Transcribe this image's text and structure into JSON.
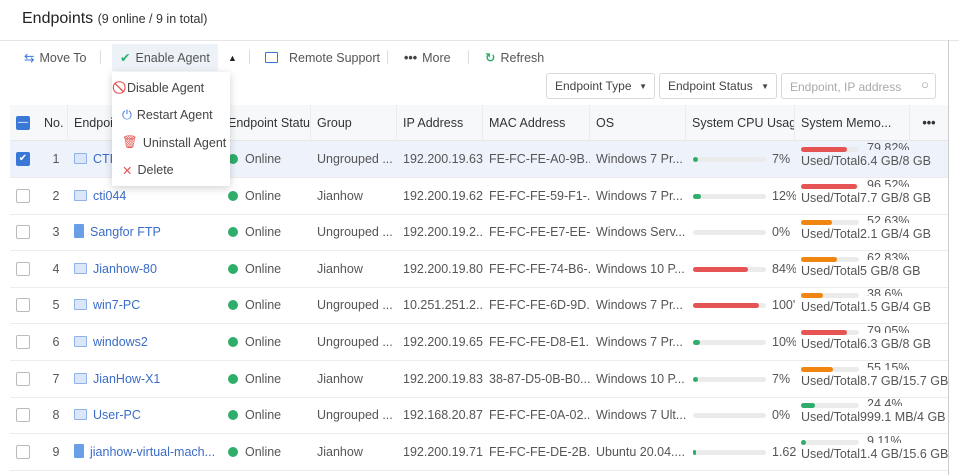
{
  "header": {
    "title": "Endpoints",
    "subtitle": "(9 online / 9 in total)"
  },
  "toolbar": {
    "move_to": "Move To",
    "enable_agent": "Enable Agent",
    "remote_support": "Remote Support",
    "more": "More",
    "refresh": "Refresh"
  },
  "dropdown_menu": {
    "items": [
      {
        "label": "Disable Agent",
        "icon": "ban-icon"
      },
      {
        "label": "Restart Agent",
        "icon": "power-icon"
      },
      {
        "label": "Uninstall Agent",
        "icon": "trash-icon"
      },
      {
        "label": "Delete",
        "icon": "x-icon"
      }
    ]
  },
  "filters": {
    "endpoint_type": "Endpoint Type",
    "endpoint_status": "Endpoint Status",
    "search_placeholder": "Endpoint, IP address"
  },
  "colors": {
    "accent": "#3a78d8",
    "green": "#2eae6a",
    "red": "#e55353",
    "orange": "#f0860f"
  },
  "table": {
    "headers": [
      "No.",
      "Endpoint",
      "Endpoint Status",
      "Group",
      "IP Address",
      "MAC Address",
      "OS",
      "System CPU Usage",
      "System Memo..."
    ],
    "rows": [
      {
        "no": "1",
        "name": "CTI-",
        "type": "pc",
        "status": "Online",
        "group": "Ungrouped ...",
        "ip": "192.200.19.63",
        "mac": "FE-FC-FE-A0-9B...",
        "os": "Windows 7 Pr...",
        "cpu": "7%",
        "cpu_pct": 7,
        "mem_pct_text": "79.82%",
        "mem_pct": 79.82,
        "mem": "Used/Total6.4 GB/8 GB",
        "checked": true
      },
      {
        "no": "2",
        "name": "cti044",
        "type": "pc",
        "status": "Online",
        "group": "Jianhow",
        "ip": "192.200.19.62",
        "mac": "FE-FC-FE-59-F1-...",
        "os": "Windows 7 Pr...",
        "cpu": "12%",
        "cpu_pct": 12,
        "mem_pct_text": "96.52%",
        "mem_pct": 96.52,
        "mem": "Used/Total7.7 GB/8 GB"
      },
      {
        "no": "3",
        "name": "Sangfor FTP",
        "type": "server",
        "status": "Online",
        "group": "Ungrouped ...",
        "ip": "192.200.19.2...",
        "mac": "FE-FC-FE-E7-EE-...",
        "os": "Windows Serv...",
        "cpu": "0%",
        "cpu_pct": 0,
        "mem_pct_text": "52.63%",
        "mem_pct": 52.63,
        "mem": "Used/Total2.1 GB/4 GB"
      },
      {
        "no": "4",
        "name": "Jianhow-80",
        "type": "pc",
        "status": "Online",
        "group": "Jianhow",
        "ip": "192.200.19.80",
        "mac": "FE-FC-FE-74-B6-...",
        "os": "Windows 10 P...",
        "cpu": "84%",
        "cpu_pct": 84,
        "mem_pct_text": "62.83%",
        "mem_pct": 62.83,
        "mem": "Used/Total5 GB/8 GB"
      },
      {
        "no": "5",
        "name": "win7-PC",
        "type": "pc",
        "status": "Online",
        "group": "Ungrouped ...",
        "ip": "10.251.251.2...",
        "mac": "FE-FC-FE-6D-9D...",
        "os": "Windows 7 Pr...",
        "cpu": "100'",
        "cpu_pct": 100,
        "mem_pct_text": "38.6%",
        "mem_pct": 38.6,
        "mem": "Used/Total1.5 GB/4 GB"
      },
      {
        "no": "6",
        "name": "windows2",
        "type": "pc",
        "status": "Online",
        "group": "Ungrouped ...",
        "ip": "192.200.19.65",
        "mac": "FE-FC-FE-D8-E1...",
        "os": "Windows 7 Pr...",
        "cpu": "10%",
        "cpu_pct": 10,
        "mem_pct_text": "79.05%",
        "mem_pct": 79.05,
        "mem": "Used/Total6.3 GB/8 GB"
      },
      {
        "no": "7",
        "name": "JianHow-X1",
        "type": "pc",
        "status": "Online",
        "group": "Jianhow",
        "ip": "192.200.19.83",
        "mac": "38-87-D5-0B-B0...",
        "os": "Windows 10 P...",
        "cpu": "7%",
        "cpu_pct": 7,
        "mem_pct_text": "55.15%",
        "mem_pct": 55.15,
        "mem": "Used/Total8.7 GB/15.7 GB"
      },
      {
        "no": "8",
        "name": "User-PC",
        "type": "pc",
        "status": "Online",
        "group": "Ungrouped ...",
        "ip": "192.168.20.87",
        "mac": "FE-FC-FE-0A-02...",
        "os": "Windows 7 Ult...",
        "cpu": "0%",
        "cpu_pct": 0,
        "mem_pct_text": "24.4%",
        "mem_pct": 24.4,
        "mem": "Used/Total999.1 MB/4 GB"
      },
      {
        "no": "9",
        "name": "jianhow-virtual-mach...",
        "type": "server",
        "status": "Online",
        "group": "Jianhow",
        "ip": "192.200.19.71",
        "mac": "FE-FC-FE-DE-2B...",
        "os": "Ubuntu 20.04....",
        "cpu": "1.62",
        "cpu_pct": 1.62,
        "mem_pct_text": "9.11%",
        "mem_pct": 9.11,
        "mem": "Used/Total1.4 GB/15.6 GB"
      }
    ]
  }
}
